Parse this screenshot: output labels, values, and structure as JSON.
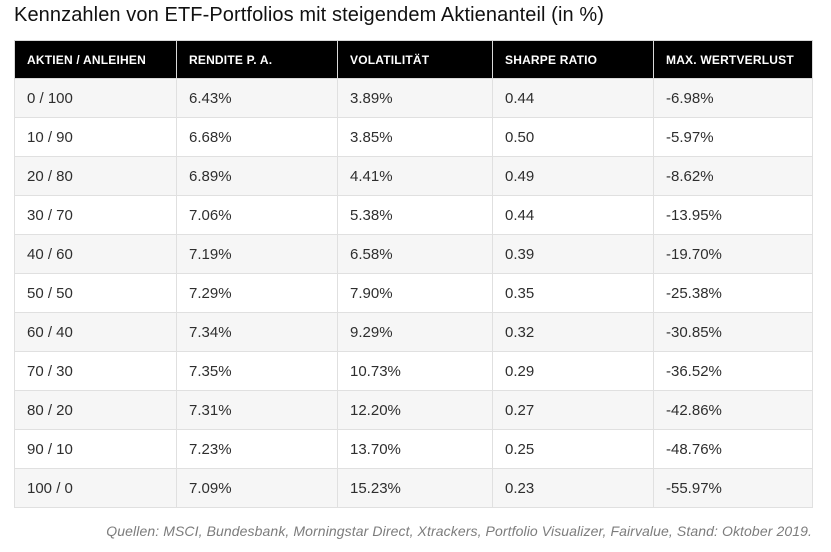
{
  "title": "Kennzahlen von ETF-Portfolios mit steigendem Aktienanteil (in %)",
  "table": {
    "columns": [
      "AKTIEN / ANLEIHEN",
      "RENDITE P. A.",
      "VOLATILITÄT",
      "SHARPE RATIO",
      "MAX. WERTVERLUST"
    ],
    "rows": [
      [
        "0 / 100",
        "6.43%",
        "3.89%",
        "0.44",
        "-6.98%"
      ],
      [
        "10 / 90",
        "6.68%",
        "3.85%",
        "0.50",
        "-5.97%"
      ],
      [
        "20 / 80",
        "6.89%",
        "4.41%",
        "0.49",
        "-8.62%"
      ],
      [
        "30 / 70",
        "7.06%",
        "5.38%",
        "0.44",
        "-13.95%"
      ],
      [
        "40 / 60",
        "7.19%",
        "6.58%",
        "0.39",
        "-19.70%"
      ],
      [
        "50 / 50",
        "7.29%",
        "7.90%",
        "0.35",
        "-25.38%"
      ],
      [
        "60 / 40",
        "7.34%",
        "9.29%",
        "0.32",
        "-30.85%"
      ],
      [
        "70 / 30",
        "7.35%",
        "10.73%",
        "0.29",
        "-36.52%"
      ],
      [
        "80 / 20",
        "7.31%",
        "12.20%",
        "0.27",
        "-42.86%"
      ],
      [
        "90 / 10",
        "7.23%",
        "13.70%",
        "0.25",
        "-48.76%"
      ],
      [
        "100 / 0",
        "7.09%",
        "15.23%",
        "0.23",
        "-55.97%"
      ]
    ]
  },
  "footer": {
    "source_note": "Quellen: MSCI, Bundesbank, Morningstar Direct, Xtrackers, Portfolio Visualizer, Fairvalue, Stand: Oktober 2019."
  },
  "colors": {
    "header_bg": "#000000",
    "header_text": "#ffffff",
    "row_alt_bg": "#f6f6f6",
    "row_bg": "#ffffff",
    "border": "#e0e0e0",
    "body_text": "#2e2e2e",
    "footer_text": "#7c7c7c"
  },
  "chart_data": {
    "type": "table",
    "title": "Kennzahlen von ETF-Portfolios mit steigendem Aktienanteil (in %)",
    "columns": [
      "AKTIEN / ANLEIHEN",
      "RENDITE P. A.",
      "VOLATILITÄT",
      "SHARPE RATIO",
      "MAX. WERTVERLUST"
    ],
    "rows": [
      [
        "0 / 100",
        "6.43%",
        "3.89%",
        "0.44",
        "-6.98%"
      ],
      [
        "10 / 90",
        "6.68%",
        "3.85%",
        "0.50",
        "-5.97%"
      ],
      [
        "20 / 80",
        "6.89%",
        "4.41%",
        "0.49",
        "-8.62%"
      ],
      [
        "30 / 70",
        "7.06%",
        "5.38%",
        "0.44",
        "-13.95%"
      ],
      [
        "40 / 60",
        "7.19%",
        "6.58%",
        "0.39",
        "-19.70%"
      ],
      [
        "50 / 50",
        "7.29%",
        "7.90%",
        "0.35",
        "-25.38%"
      ],
      [
        "60 / 40",
        "7.34%",
        "9.29%",
        "0.32",
        "-30.85%"
      ],
      [
        "70 / 30",
        "7.35%",
        "10.73%",
        "0.29",
        "-36.52%"
      ],
      [
        "80 / 20",
        "7.31%",
        "12.20%",
        "0.27",
        "-42.86%"
      ],
      [
        "90 / 10",
        "7.23%",
        "13.70%",
        "0.25",
        "-48.76%"
      ],
      [
        "100 / 0",
        "7.09%",
        "15.23%",
        "0.23",
        "-55.97%"
      ]
    ],
    "annotations": [
      "Quellen: MSCI, Bundesbank, Morningstar Direct, Xtrackers, Portfolio Visualizer, Fairvalue, Stand: Oktober 2019."
    ]
  }
}
